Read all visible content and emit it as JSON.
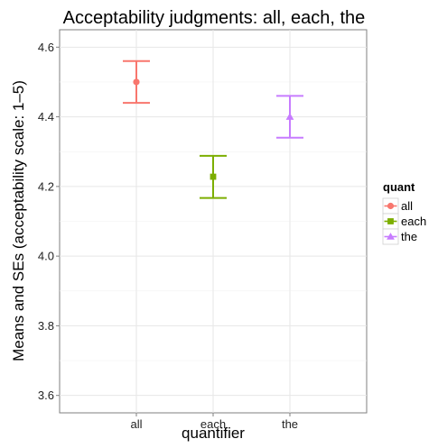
{
  "chart_data": {
    "type": "errorbar",
    "title": "Acceptability judgments: all, each, the",
    "xlabel": "quantifier",
    "ylabel": "Means and SEs (acceptability scale: 1–5)",
    "categories": [
      "all",
      "each",
      "the"
    ],
    "means": [
      4.5,
      4.228,
      4.4
    ],
    "lower": [
      4.44,
      4.167,
      4.34
    ],
    "upper": [
      4.56,
      4.288,
      4.46
    ],
    "ylim": [
      3.55,
      4.65
    ],
    "yticks": [
      3.6,
      3.8,
      4.0,
      4.2,
      4.4,
      4.6
    ],
    "ytick_labels": [
      "3.6",
      "3.8",
      "4.0",
      "4.2",
      "4.4",
      "4.6"
    ],
    "grid": true,
    "legend": {
      "title": "quant",
      "position": "right",
      "entries": [
        "all",
        "each",
        "the"
      ]
    },
    "colors": [
      "#F8766D",
      "#7CAE00",
      "#C77CFF"
    ],
    "markers": [
      "circle",
      "square",
      "triangle"
    ]
  }
}
